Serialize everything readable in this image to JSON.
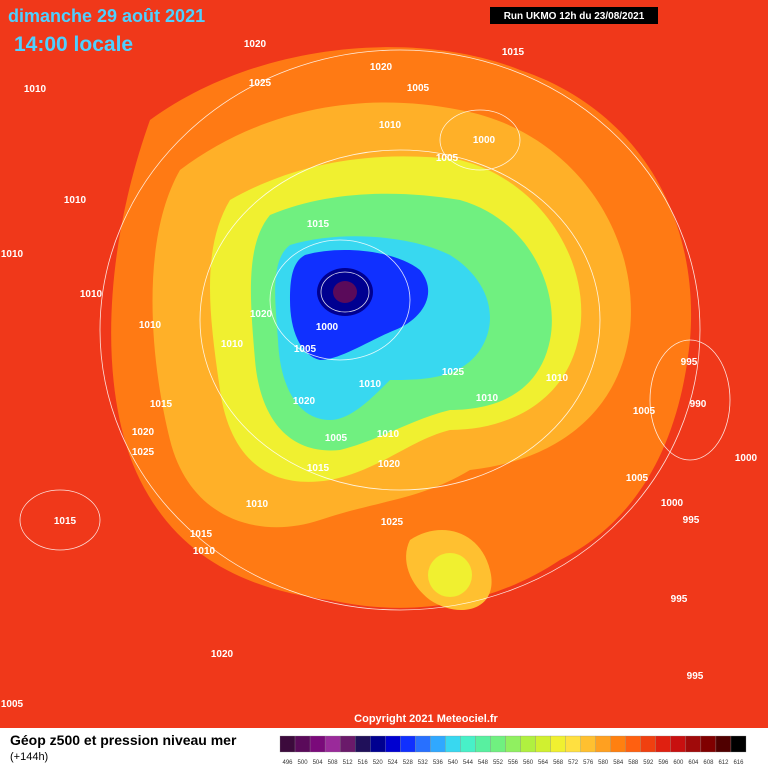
{
  "header": {
    "date": "dimanche 29 août 2021",
    "time": "14:00 locale",
    "run": "Run UKMO 12h du 23/08/2021"
  },
  "map": {
    "isobar_labels": [
      "1020",
      "1015",
      "1020",
      "1010",
      "1025",
      "1005",
      "1010",
      "1000",
      "1005",
      "1010",
      "1015",
      "1010",
      "1010",
      "1010",
      "1020",
      "1000",
      "1010",
      "1005",
      "995",
      "1025",
      "1010",
      "1010",
      "1015",
      "1020",
      "1010",
      "990",
      "1005",
      "1020",
      "1005",
      "1010",
      "1025",
      "1000",
      "1020",
      "1015",
      "1005",
      "1010",
      "1000",
      "1015",
      "1025",
      "995",
      "1015",
      "1010",
      "995",
      "1020",
      "995",
      "1005"
    ],
    "copyright": "Copyright 2021 Meteociel.fr"
  },
  "legend": {
    "title": "Géop z500 et pression niveau mer",
    "lead": "(+144h)",
    "scale": {
      "values": [
        496,
        500,
        504,
        508,
        512,
        516,
        520,
        524,
        528,
        532,
        536,
        540,
        544,
        548,
        552,
        556,
        560,
        564,
        568,
        572,
        576,
        580,
        584,
        588,
        592,
        596,
        600,
        604,
        608,
        612,
        616
      ],
      "colors": [
        "#3c0a3c",
        "#5a0a5a",
        "#7a0a7a",
        "#9a2a9a",
        "#6a1a6a",
        "#20105a",
        "#000090",
        "#0000d0",
        "#1030ff",
        "#2870ff",
        "#30a8ff",
        "#38d8f0",
        "#48f0c8",
        "#58f0a0",
        "#70f080",
        "#90f060",
        "#b0f040",
        "#d0f030",
        "#f0f030",
        "#ffe040",
        "#ffc030",
        "#ffa020",
        "#ff8010",
        "#ff6010",
        "#f04010",
        "#e02010",
        "#c81010",
        "#a00a0a",
        "#800000",
        "#500000",
        "#000000"
      ]
    }
  }
}
